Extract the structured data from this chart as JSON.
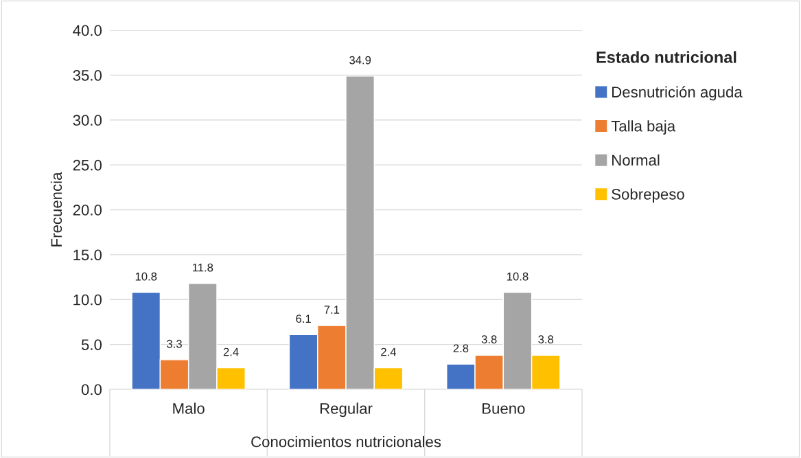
{
  "chart_data": {
    "type": "bar",
    "xlabel": "Conocimientos nutricionales",
    "ylabel": "Frecuencia",
    "legend_title": "Estado nutricional",
    "categories": [
      "Malo",
      "Regular",
      "Bueno"
    ],
    "series": [
      {
        "name": "Desnutrición aguda",
        "color": "#4472c4",
        "values": [
          10.8,
          6.1,
          2.8
        ]
      },
      {
        "name": "Talla baja",
        "color": "#ed7d31",
        "values": [
          3.3,
          7.1,
          3.8
        ]
      },
      {
        "name": "Normal",
        "color": "#a5a5a5",
        "values": [
          11.8,
          34.9,
          10.8
        ]
      },
      {
        "name": "Sobrepeso",
        "color": "#ffc000",
        "values": [
          2.4,
          2.4,
          3.8
        ]
      }
    ],
    "ylim": [
      0,
      40
    ],
    "yticks": [
      {
        "value": 0,
        "label": "0.0"
      },
      {
        "value": 5,
        "label": "5.0"
      },
      {
        "value": 10,
        "label": "10.0"
      },
      {
        "value": 15,
        "label": "15.0"
      },
      {
        "value": 20,
        "label": "20.0"
      },
      {
        "value": 25,
        "label": "25.0"
      },
      {
        "value": 30,
        "label": "30.0"
      },
      {
        "value": 35,
        "label": "35.0"
      },
      {
        "value": 40,
        "label": "40.0"
      }
    ],
    "grid": "y",
    "legend": "right",
    "data_labels": true
  }
}
